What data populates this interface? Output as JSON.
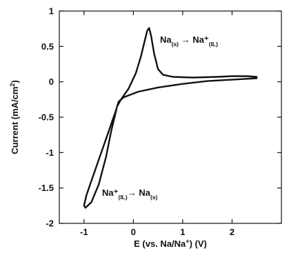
{
  "chart_data": {
    "type": "line",
    "title": "",
    "xlabel": "E (vs. Na/Na⁺) (V)",
    "ylabel": "Current (mA/cm²)",
    "xlim": [
      -1.5,
      3.0
    ],
    "ylim": [
      -2,
      1
    ],
    "xticks": [
      -1,
      0,
      1,
      2
    ],
    "xtick_labels": [
      "-1",
      "0",
      "1",
      "2"
    ],
    "yticks": [
      1,
      0.5,
      0,
      -0.5,
      -1,
      -1.5,
      -2
    ],
    "ytick_labels": [
      "1",
      "0.5",
      "0",
      "-0.5",
      "-1",
      "-1.5",
      "-2"
    ],
    "grid": false,
    "series": [
      {
        "color": "#111111",
        "points": [
          [
            2.5,
            0.05
          ],
          [
            2.0,
            0.03
          ],
          [
            1.5,
            0.01
          ],
          [
            1.0,
            -0.03
          ],
          [
            0.5,
            -0.08
          ],
          [
            0.1,
            -0.14
          ],
          [
            -0.2,
            -0.22
          ],
          [
            -0.3,
            -0.28
          ],
          [
            -0.35,
            -0.4
          ],
          [
            -0.45,
            -0.6
          ],
          [
            -0.55,
            -0.8
          ],
          [
            -0.7,
            -1.1
          ],
          [
            -0.85,
            -1.4
          ],
          [
            -0.95,
            -1.6
          ],
          [
            -1.0,
            -1.75
          ],
          [
            -0.97,
            -1.78
          ],
          [
            -0.85,
            -1.7
          ],
          [
            -0.7,
            -1.45
          ],
          [
            -0.55,
            -1.05
          ],
          [
            -0.45,
            -0.7
          ],
          [
            -0.38,
            -0.5
          ],
          [
            -0.33,
            -0.35
          ],
          [
            -0.25,
            -0.25
          ],
          [
            -0.1,
            -0.1
          ],
          [
            0.05,
            0.12
          ],
          [
            0.15,
            0.35
          ],
          [
            0.22,
            0.55
          ],
          [
            0.28,
            0.72
          ],
          [
            0.32,
            0.76
          ],
          [
            0.36,
            0.65
          ],
          [
            0.42,
            0.4
          ],
          [
            0.5,
            0.18
          ],
          [
            0.6,
            0.1
          ],
          [
            0.8,
            0.07
          ],
          [
            1.2,
            0.06
          ],
          [
            1.7,
            0.07
          ],
          [
            2.0,
            0.08
          ],
          [
            2.3,
            0.08
          ],
          [
            2.5,
            0.07
          ]
        ]
      }
    ],
    "annotations": [
      {
        "main": "Na",
        "sub": "(s)",
        "arrow": " → ",
        "main2": "Na⁺",
        "sub2": "(IL)"
      },
      {
        "main": "Na⁺",
        "sub": "(IL)",
        "arrow": "→ ",
        "main2": "Na",
        "sub2": "(s)"
      }
    ]
  }
}
